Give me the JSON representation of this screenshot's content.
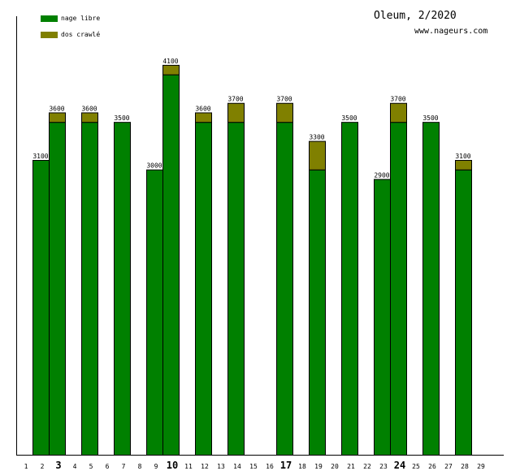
{
  "chart_data": {
    "type": "bar",
    "stacked": true,
    "title": "Oleum, 2/2020",
    "subtitle": "www.nageurs.com",
    "xlabel": "",
    "ylabel": "",
    "ylim": [
      0,
      4700
    ],
    "categories": [
      1,
      2,
      3,
      4,
      5,
      6,
      7,
      8,
      9,
      10,
      11,
      12,
      13,
      14,
      15,
      16,
      17,
      18,
      19,
      20,
      21,
      22,
      23,
      24,
      25,
      26,
      27,
      28,
      29
    ],
    "bold_categories": [
      3,
      10,
      17,
      24
    ],
    "legend_position": "top-left",
    "series": [
      {
        "name": "nage libre",
        "color": "#008000",
        "values": [
          0,
          3100,
          3500,
          0,
          3500,
          0,
          3500,
          0,
          3000,
          4000,
          0,
          3500,
          0,
          3500,
          0,
          0,
          3500,
          0,
          3000,
          0,
          3500,
          0,
          2900,
          3500,
          0,
          3500,
          0,
          3000,
          0
        ]
      },
      {
        "name": "dos crawlé",
        "color": "#808000",
        "values": [
          0,
          0,
          100,
          0,
          100,
          0,
          0,
          0,
          0,
          100,
          0,
          100,
          0,
          200,
          0,
          0,
          200,
          0,
          300,
          0,
          0,
          0,
          0,
          200,
          0,
          0,
          0,
          100,
          0
        ]
      }
    ],
    "totals": [
      0,
      3100,
      3600,
      0,
      3600,
      0,
      3500,
      0,
      3000,
      4100,
      0,
      3600,
      0,
      3700,
      0,
      0,
      3700,
      0,
      3300,
      0,
      3500,
      0,
      2900,
      3700,
      0,
      3500,
      0,
      3100,
      0
    ]
  }
}
